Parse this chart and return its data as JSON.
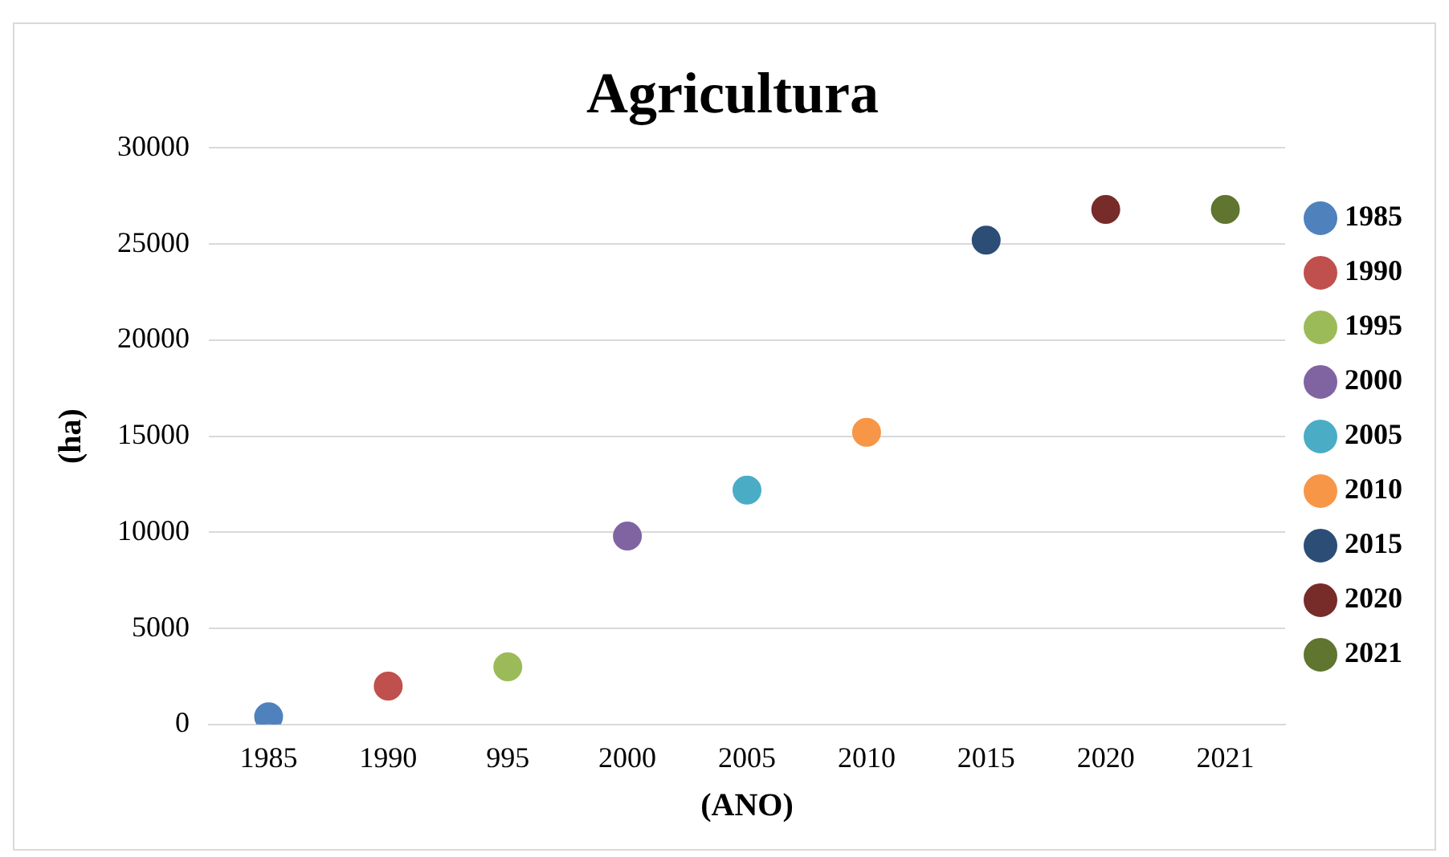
{
  "chart_data": {
    "type": "line",
    "title": "Agricultura",
    "xlabel": "(ANO)",
    "ylabel": "(ha)",
    "categories": [
      "1985",
      "1990",
      "995",
      "2000",
      "2005",
      "2010",
      "2015",
      "2020",
      "2021"
    ],
    "series": [
      {
        "name": "1985",
        "color": "#4f81bd",
        "values": [
          400,
          null,
          null,
          null,
          null,
          null,
          null,
          null,
          null
        ]
      },
      {
        "name": "1990",
        "color": "#c0504d",
        "values": [
          null,
          2000,
          null,
          null,
          null,
          null,
          null,
          null,
          null
        ]
      },
      {
        "name": "1995",
        "color": "#9bbb59",
        "values": [
          null,
          null,
          3000,
          null,
          null,
          null,
          null,
          null,
          null
        ]
      },
      {
        "name": "2000",
        "color": "#8064a2",
        "values": [
          null,
          null,
          null,
          9800,
          null,
          null,
          null,
          null,
          null
        ]
      },
      {
        "name": "2005",
        "color": "#4bacc6",
        "values": [
          null,
          null,
          null,
          null,
          12200,
          null,
          null,
          null,
          null
        ]
      },
      {
        "name": "2010",
        "color": "#f79646",
        "values": [
          null,
          null,
          null,
          null,
          null,
          15200,
          null,
          null,
          null
        ]
      },
      {
        "name": "2015",
        "color": "#2c4d75",
        "values": [
          null,
          null,
          null,
          null,
          null,
          null,
          25200,
          null,
          null
        ]
      },
      {
        "name": "2020",
        "color": "#772c2a",
        "values": [
          null,
          null,
          null,
          null,
          null,
          null,
          null,
          26800,
          null
        ]
      },
      {
        "name": "2021",
        "color": "#5f7530",
        "values": [
          null,
          null,
          null,
          null,
          null,
          null,
          null,
          null,
          26800
        ]
      }
    ],
    "ylim": [
      0,
      30000
    ],
    "yticks": [
      0,
      5000,
      10000,
      15000,
      20000,
      25000,
      30000
    ],
    "grid": "y",
    "legend": "right",
    "marker": "circle"
  }
}
